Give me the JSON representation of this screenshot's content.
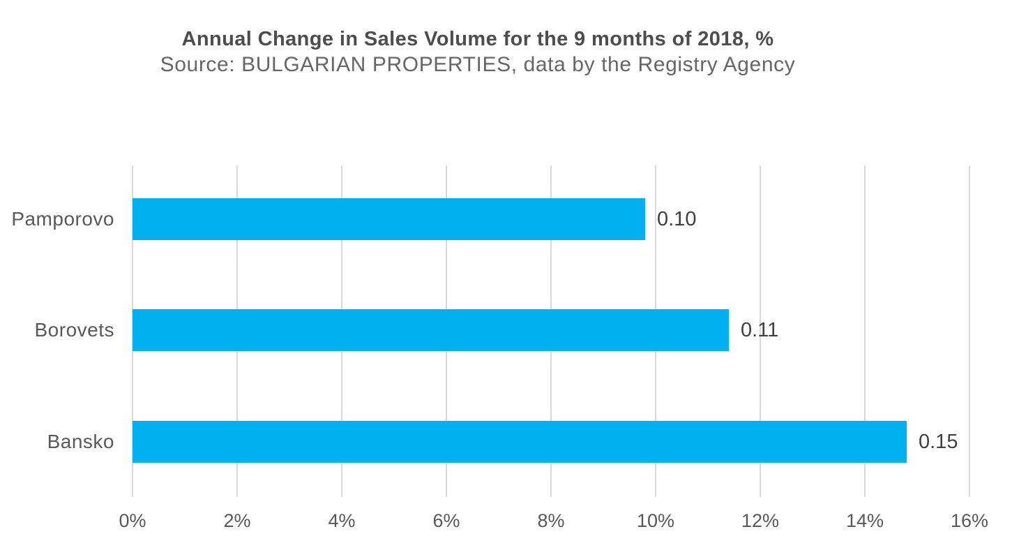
{
  "chart_data": {
    "type": "bar",
    "orientation": "horizontal",
    "title": "Annual Change in Sales Volume for the 9 months of 2018, %",
    "subtitle": "Source: BULGARIAN PROPERTIES, data by the Registry Agency",
    "categories": [
      "Pamporovo",
      "Borovets",
      "Bansko"
    ],
    "values_pct": [
      9.8,
      11.4,
      14.8
    ],
    "data_labels": [
      "0.10",
      "0.11",
      "0.15"
    ],
    "tick_labels": [
      "0%",
      "2%",
      "4%",
      "6%",
      "8%",
      "10%",
      "12%",
      "14%",
      "16%"
    ],
    "xlim": [
      0,
      16
    ],
    "xlabel": "",
    "ylabel": "",
    "grid": "vertical-on",
    "legend": "none",
    "bar_color": "#00B0F0",
    "gridline_color": "#D9D9D9",
    "title_color": "#4D4D4D",
    "subtitle_color": "#666666",
    "axis_text_color": "#595959",
    "data_label_color": "#404040",
    "background_color": "#FFFFFF"
  }
}
